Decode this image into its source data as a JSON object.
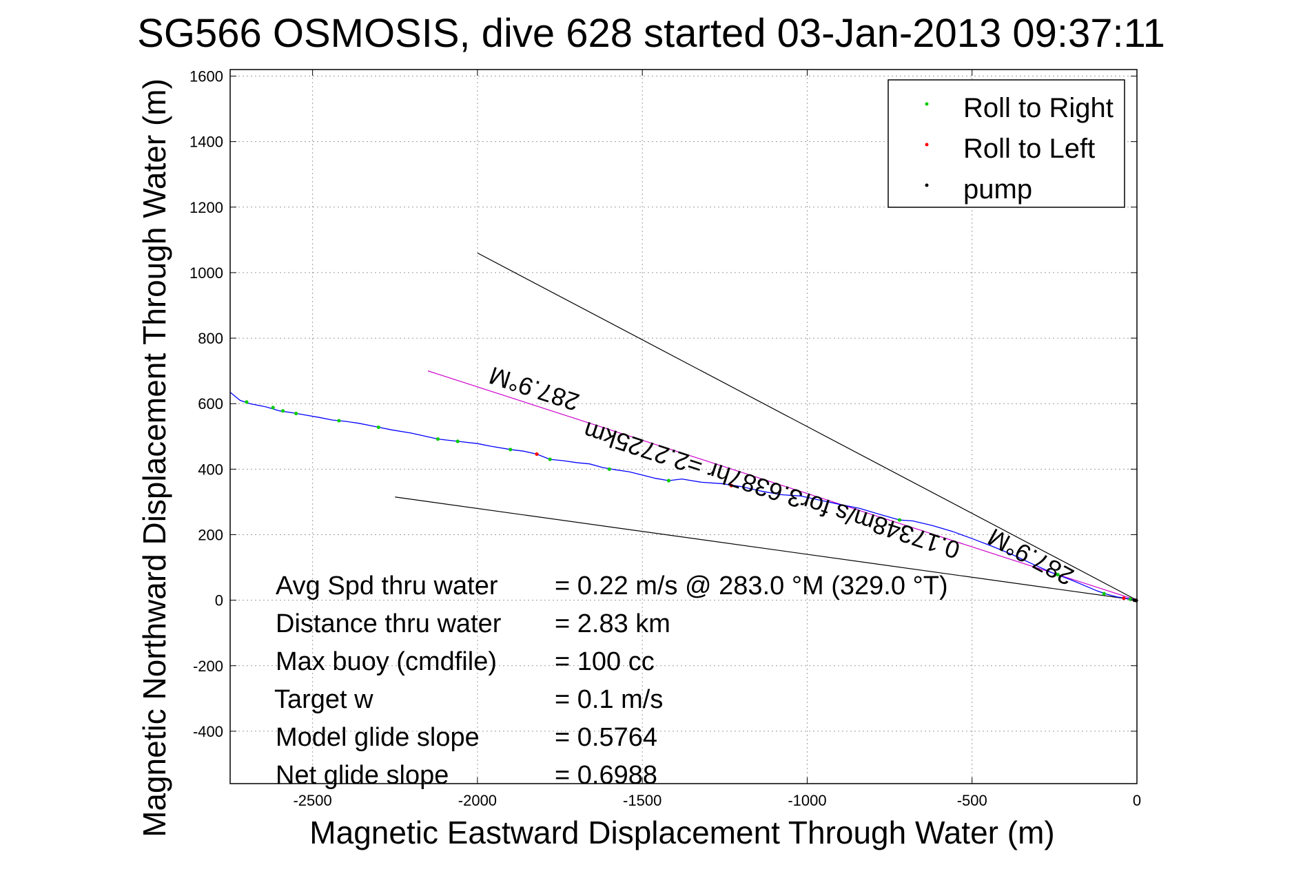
{
  "chart_data": {
    "type": "line",
    "title": "SG566 OSMOSIS, dive 628 started 03-Jan-2013 09:37:11",
    "xlabel": "Magnetic Eastward Displacement Through Water (m)",
    "ylabel": "Magnetic Northward Displacement Through Water (m)",
    "xlim": [
      -2750,
      0
    ],
    "ylim": [
      -560,
      1620
    ],
    "x_ticks": [
      -2500,
      -2000,
      -1500,
      -1000,
      -500,
      0
    ],
    "y_ticks": [
      -400,
      -200,
      0,
      200,
      400,
      600,
      800,
      1000,
      1200,
      1400,
      1600
    ],
    "grid": true,
    "legend_position": "top-right",
    "legend": [
      {
        "label": "Roll to Right",
        "color": "#00cc00"
      },
      {
        "label": "Roll to Left",
        "color": "#ff0000"
      },
      {
        "label": "pump",
        "color": "#000000"
      }
    ],
    "track": {
      "name": "",
      "color": "#0000ff",
      "points": [
        [
          0,
          0
        ],
        [
          -30,
          5
        ],
        [
          -60,
          10
        ],
        [
          -90,
          18
        ],
        [
          -120,
          28
        ],
        [
          -160,
          45
        ],
        [
          -200,
          62
        ],
        [
          -260,
          85
        ],
        [
          -320,
          112
        ],
        [
          -380,
          140
        ],
        [
          -440,
          165
        ],
        [
          -500,
          188
        ],
        [
          -560,
          210
        ],
        [
          -620,
          228
        ],
        [
          -680,
          242
        ],
        [
          -720,
          245
        ],
        [
          -780,
          262
        ],
        [
          -840,
          280
        ],
        [
          -900,
          292
        ],
        [
          -960,
          305
        ],
        [
          -1020,
          318
        ],
        [
          -1080,
          322
        ],
        [
          -1140,
          333
        ],
        [
          -1200,
          347
        ],
        [
          -1260,
          356
        ],
        [
          -1320,
          360
        ],
        [
          -1380,
          370
        ],
        [
          -1420,
          365
        ],
        [
          -1460,
          372
        ],
        [
          -1500,
          382
        ],
        [
          -1540,
          392
        ],
        [
          -1580,
          398
        ],
        [
          -1620,
          405
        ],
        [
          -1660,
          416
        ],
        [
          -1700,
          420
        ],
        [
          -1740,
          426
        ],
        [
          -1780,
          430
        ],
        [
          -1820,
          446
        ],
        [
          -1860,
          455
        ],
        [
          -1900,
          460
        ],
        [
          -1960,
          470
        ],
        [
          -2000,
          478
        ],
        [
          -2060,
          485
        ],
        [
          -2120,
          492
        ],
        [
          -2200,
          510
        ],
        [
          -2260,
          520
        ],
        [
          -2320,
          532
        ],
        [
          -2360,
          540
        ],
        [
          -2400,
          546
        ],
        [
          -2440,
          550
        ],
        [
          -2480,
          558
        ],
        [
          -2520,
          565
        ],
        [
          -2560,
          572
        ],
        [
          -2600,
          578
        ],
        [
          -2640,
          590
        ],
        [
          -2690,
          600
        ],
        [
          -2720,
          610
        ],
        [
          -2750,
          635
        ]
      ]
    },
    "roll_right_points": [
      [
        -20,
        3
      ],
      [
        -100,
        20
      ],
      [
        -240,
        78
      ],
      [
        -720,
        245
      ],
      [
        -1420,
        365
      ],
      [
        -1600,
        400
      ],
      [
        -1780,
        430
      ],
      [
        -1900,
        460
      ],
      [
        -2060,
        485
      ],
      [
        -2120,
        492
      ],
      [
        -2300,
        528
      ],
      [
        -2420,
        548
      ],
      [
        -2550,
        570
      ],
      [
        -2590,
        578
      ],
      [
        -2620,
        588
      ],
      [
        -2700,
        605
      ]
    ],
    "roll_left_points": [
      [
        -5,
        0
      ],
      [
        -40,
        6
      ],
      [
        -1230,
        350
      ],
      [
        -1820,
        446
      ]
    ],
    "pump_points": [
      [
        -2,
        -1
      ],
      [
        -8,
        0
      ]
    ],
    "heading_lines": [
      {
        "color": "#000000",
        "from": [
          0,
          0
        ],
        "to": [
          -2000,
          1060
        ]
      },
      {
        "color": "#000000",
        "from": [
          0,
          0
        ],
        "to": [
          -2250,
          315
        ]
      },
      {
        "color": "#cc00cc",
        "from": [
          0,
          0
        ],
        "to": [
          -2150,
          700
        ]
      }
    ],
    "annotations": [
      {
        "text": "287.9°M",
        "x": -1820,
        "y": 670,
        "rotation": 198
      },
      {
        "text": "0.17348m/s for3.6387hr =2.2725km",
        "x": -1100,
        "y": 360,
        "rotation": 198
      },
      {
        "text": "287.9°M",
        "x": -310,
        "y": 155,
        "rotation": 208
      }
    ],
    "stats": [
      {
        "label": "Avg Spd thru water",
        "value": "=  0.22 m/s @ 283.0 °M (329.0 °T)"
      },
      {
        "label": "Distance thru water",
        "value": "=  2.83 km"
      },
      {
        "label": "Max buoy (cmdfile)",
        "value": "= 100 cc"
      },
      {
        "label": "Target w",
        "value": "= 0.1 m/s"
      },
      {
        "label": "Model glide slope",
        "value": "= 0.5764"
      },
      {
        "label": "Net glide slope",
        "value": "= 0.6988"
      }
    ]
  }
}
